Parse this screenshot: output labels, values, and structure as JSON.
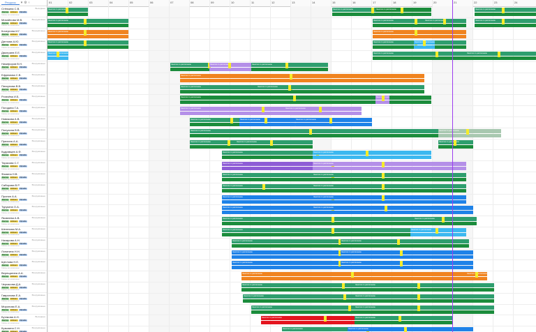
{
  "sidebar": {
    "tab_label": "Ресурсы",
    "filter_icon": "filter-icon",
    "settings_icon": "gear-icon",
    "collapse_icon": "chevron-left-icon",
    "people": [
      {
        "name": "Стёпкина С.В.",
        "status": "Выходные"
      },
      {
        "name": "Михайлова М.В.",
        "status": "Вооружённые"
      },
      {
        "name": "Кочергина И.Г.",
        "status": "Вооружённые"
      },
      {
        "name": "Дятлова А.Ю.",
        "status": "Вооружённые"
      },
      {
        "name": "Дмитриев Е.Е.",
        "status": "Вооружённые"
      },
      {
        "name": "Никифоров В.Н.",
        "status": "Вооружённые"
      },
      {
        "name": "Ефремова С.В.",
        "status": "Вооружённые"
      },
      {
        "name": "Пискунова В.В.",
        "status": "Вооружённые"
      },
      {
        "name": "Рогачёва И.Б.",
        "status": "Вооружённые"
      },
      {
        "name": "Погодина Г.А.",
        "status": "Вооружённые"
      },
      {
        "name": "Новикова А.В.",
        "status": "Вооружённые"
      },
      {
        "name": "Полухина В.В.",
        "status": "Вооружённые"
      },
      {
        "name": "Пряхина А.А.",
        "status": "Вооружённые"
      },
      {
        "name": "Кудрявцев А.Ф.",
        "status": "Вооружённые"
      },
      {
        "name": "Тарасова С.Г.",
        "status": "Вооружённые"
      },
      {
        "name": "Фомина Н.В.",
        "status": "Вооружённые"
      },
      {
        "name": "Сабирова В.Р.",
        "status": "Вооружённые"
      },
      {
        "name": "Пронин А.А.",
        "status": "Вооружённые"
      },
      {
        "name": "Турукина О.А.",
        "status": "Вооружённые"
      },
      {
        "name": "Яковлева А.В.",
        "status": "Вооружённые"
      },
      {
        "name": "Шелехова М.А.",
        "status": "Вооружённые"
      },
      {
        "name": "Назарова А.Н.",
        "status": "Вооружённые"
      },
      {
        "name": "Лопатина Н.Н.",
        "status": "Вооружённые"
      },
      {
        "name": "Щеглова Н.Е.",
        "status": "Вооружённые"
      },
      {
        "name": "Верещагина А.А.",
        "status": "Вооружённые"
      },
      {
        "name": "Черкасова Д.А.",
        "status": "Вооружённые"
      },
      {
        "name": "Гаврилова Е.А.",
        "status": "Вооружённые"
      },
      {
        "name": "Миронова Е.А.",
        "status": "Вооружённые"
      },
      {
        "name": "Бутакова А.Н.",
        "status": "Выходные"
      },
      {
        "name": "Кузьмина С.Н.",
        "status": "Вооружённые"
      }
    ],
    "tag_labels": [
      "Мастер",
      "Кабинет",
      "Офлайн"
    ],
    "sub_label": "Смены не назначены"
  },
  "timeline": {
    "days": [
      "01",
      "02",
      "03",
      "04",
      "05",
      "06",
      "07",
      "08",
      "09",
      "10",
      "11",
      "12",
      "13",
      "14",
      "15",
      "16",
      "17",
      "18",
      "19",
      "20",
      "21",
      "22",
      "23",
      "24"
    ],
    "today_label": "20"
  },
  "colors": {
    "green": "#2e9e6e",
    "darkgreen": "#1b8c3c",
    "orange": "#f0831f",
    "blue": "#1e82e8",
    "lightblue": "#3cb8f0",
    "purple": "#b48fe8",
    "violet": "#8e5cd6",
    "red": "#e4141e",
    "yellow": "#f5ec2a",
    "today": "#9c3cf0",
    "grey": "#a8c8b0"
  },
  "bar_label": "Занятия по расписанию"
}
